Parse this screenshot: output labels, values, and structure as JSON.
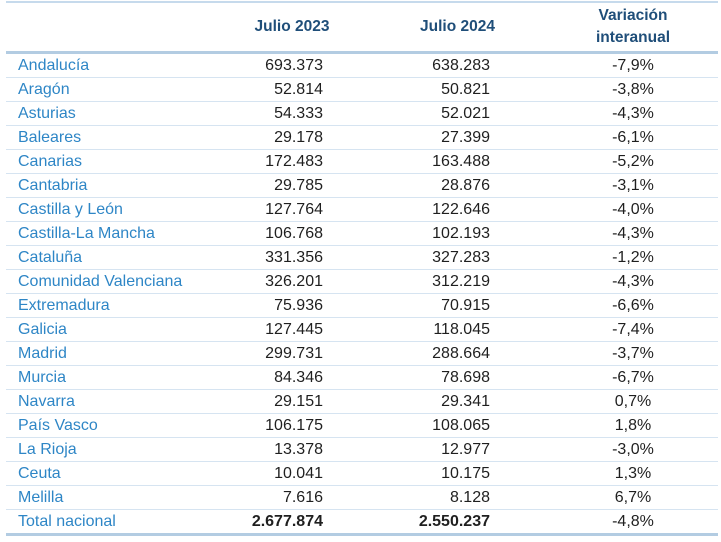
{
  "chart_data": {
    "type": "table",
    "title": "",
    "columns": [
      "",
      "Julio 2023",
      "Julio 2024",
      "Variación interanual"
    ],
    "header_display": {
      "jul2023": "Julio 2023",
      "jul2024": "Julio 2024",
      "variation": "Variación\ninteranual"
    },
    "rows": [
      {
        "region": "Andalucía",
        "jul2023": "693.373",
        "jul2024": "638.283",
        "variation": "-7,9%"
      },
      {
        "region": "Aragón",
        "jul2023": "52.814",
        "jul2024": "50.821",
        "variation": "-3,8%"
      },
      {
        "region": "Asturias",
        "jul2023": "54.333",
        "jul2024": "52.021",
        "variation": "-4,3%"
      },
      {
        "region": "Baleares",
        "jul2023": "29.178",
        "jul2024": "27.399",
        "variation": "-6,1%"
      },
      {
        "region": "Canarias",
        "jul2023": "172.483",
        "jul2024": "163.488",
        "variation": "-5,2%"
      },
      {
        "region": "Cantabria",
        "jul2023": "29.785",
        "jul2024": "28.876",
        "variation": "-3,1%"
      },
      {
        "region": "Castilla y León",
        "jul2023": "127.764",
        "jul2024": "122.646",
        "variation": "-4,0%"
      },
      {
        "region": "Castilla-La Mancha",
        "jul2023": "106.768",
        "jul2024": "102.193",
        "variation": "-4,3%"
      },
      {
        "region": "Cataluña",
        "jul2023": "331.356",
        "jul2024": "327.283",
        "variation": "-1,2%"
      },
      {
        "region": "Comunidad Valenciana",
        "jul2023": "326.201",
        "jul2024": "312.219",
        "variation": "-4,3%"
      },
      {
        "region": "Extremadura",
        "jul2023": "75.936",
        "jul2024": "70.915",
        "variation": "-6,6%"
      },
      {
        "region": "Galicia",
        "jul2023": "127.445",
        "jul2024": "118.045",
        "variation": "-7,4%"
      },
      {
        "region": "Madrid",
        "jul2023": "299.731",
        "jul2024": "288.664",
        "variation": "-3,7%"
      },
      {
        "region": "Murcia",
        "jul2023": "84.346",
        "jul2024": "78.698",
        "variation": "-6,7%"
      },
      {
        "region": "Navarra",
        "jul2023": "29.151",
        "jul2024": "29.341",
        "variation": "0,7%"
      },
      {
        "region": "País Vasco",
        "jul2023": "106.175",
        "jul2024": "108.065",
        "variation": "1,8%"
      },
      {
        "region": "La Rioja",
        "jul2023": "13.378",
        "jul2024": "12.977",
        "variation": "-3,0%"
      },
      {
        "region": "Ceuta",
        "jul2023": "10.041",
        "jul2024": "10.175",
        "variation": "1,3%"
      },
      {
        "region": "Melilla",
        "jul2023": "7.616",
        "jul2024": "8.128",
        "variation": "6,7%"
      }
    ],
    "total_row": {
      "region": "Total nacional",
      "jul2023": "2.677.874",
      "jul2024": "2.550.237",
      "variation": "-4,8%"
    },
    "colors": {
      "header_text": "#1F4E79",
      "region_text": "#2E86C6",
      "value_text": "#1f1f1f",
      "border_light": "#D6E4F1",
      "border_medium": "#B3CCE2"
    },
    "layout": {
      "grid": "horizontal row separators only",
      "number_alignment": "right",
      "variation_alignment": "center"
    }
  }
}
